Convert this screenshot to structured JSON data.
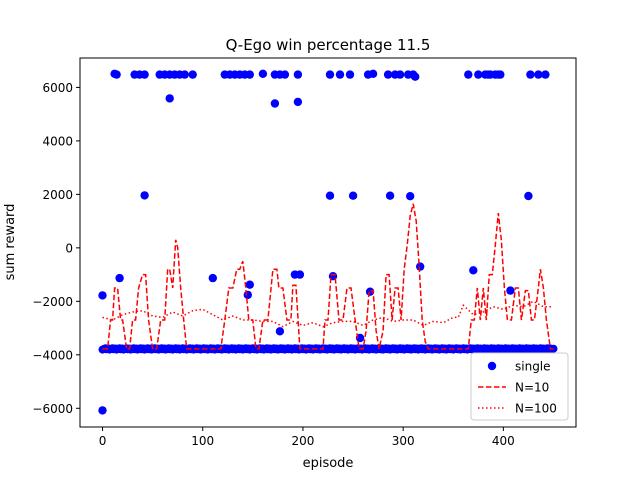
{
  "chart_data": {
    "type": "scatter",
    "title": "Q-Ego win percentage  11.5",
    "xlabel": "episode",
    "ylabel": "sum reward",
    "xlim": [
      -22.5,
      472.5
    ],
    "ylim": [
      -6700,
      7100
    ],
    "xticks": [
      0,
      100,
      200,
      300,
      400
    ],
    "yticks": [
      -6000,
      -4000,
      -2000,
      0,
      2000,
      4000,
      6000
    ],
    "tick_labels_x": [
      "0",
      "100",
      "200",
      "300",
      "400"
    ],
    "tick_labels_y": [
      "−6000",
      "−4000",
      "−2000",
      "0",
      "2000",
      "4000",
      "6000"
    ],
    "grid": false,
    "legend": {
      "placement": "lower-right",
      "entries": [
        "single",
        "N=10",
        "N=100"
      ]
    },
    "colors": {
      "single": "#0000ff",
      "n10": "#ff0000",
      "n100": "#ff0000"
    },
    "series": [
      {
        "name": "single",
        "style": "markers",
        "baseline_value": -3780,
        "baseline_x_range": [
          0,
          450
        ],
        "x": [
          0,
          0,
          12,
          14,
          17,
          32,
          37,
          42,
          42,
          57,
          62,
          67,
          67,
          72,
          77,
          82,
          90,
          110,
          122,
          127,
          132,
          137,
          142,
          145,
          147,
          147,
          160,
          172,
          172,
          177,
          177,
          182,
          192,
          195,
          195,
          197,
          227,
          227,
          230,
          237,
          247,
          250,
          257,
          265,
          267,
          270,
          285,
          287,
          292,
          297,
          305,
          307,
          310,
          312,
          317,
          365,
          370,
          375,
          382,
          385,
          387,
          392,
          395,
          397,
          407,
          425,
          427,
          435,
          442
        ],
        "y": [
          -6080,
          -1780,
          6510,
          6480,
          -1130,
          6480,
          6480,
          1960,
          6480,
          6480,
          6480,
          6480,
          5590,
          6480,
          6480,
          6480,
          6480,
          -1130,
          6480,
          6480,
          6480,
          6480,
          6480,
          -1760,
          -1380,
          6480,
          6510,
          6480,
          5400,
          6480,
          -3120,
          6480,
          -1000,
          5460,
          6480,
          -1000,
          6480,
          1950,
          -1060,
          6480,
          6480,
          1950,
          -3370,
          6480,
          -1640,
          6510,
          6480,
          1950,
          6480,
          6480,
          6480,
          1930,
          6480,
          6400,
          -700,
          6480,
          -840,
          6480,
          6480,
          6480,
          6480,
          6480,
          6480,
          6480,
          -1600,
          1940,
          6480,
          6480,
          6480
        ]
      },
      {
        "name": "N=10",
        "style": "dashed",
        "x": [
          0,
          5,
          8,
          10,
          12,
          15,
          18,
          20,
          24,
          27,
          30,
          33,
          36,
          40,
          43,
          46,
          50,
          54,
          58,
          62,
          65,
          67,
          70,
          73,
          75,
          78,
          81,
          84,
          87,
          90,
          100,
          110,
          118,
          122,
          126,
          130,
          134,
          137,
          140,
          143,
          146,
          150,
          153,
          156,
          160,
          165,
          170,
          174,
          176,
          180,
          184,
          188,
          190,
          193,
          197,
          200,
          210,
          215,
          220,
          222,
          225,
          228,
          232,
          236,
          240,
          244,
          248,
          252,
          256,
          260,
          263,
          266,
          270,
          273,
          276,
          280,
          283,
          286,
          289,
          292,
          295,
          298,
          301,
          304,
          307,
          310,
          313,
          316,
          319,
          322,
          325,
          330,
          340,
          350,
          360,
          365,
          368,
          371,
          374,
          377,
          380,
          383,
          386,
          389,
          392,
          395,
          398,
          401,
          404,
          408,
          412,
          415,
          418,
          422,
          425,
          428,
          431,
          434,
          437,
          440,
          443,
          447,
          450
        ],
        "y": [
          -3780,
          -3780,
          -2700,
          -2700,
          -1500,
          -1500,
          -2700,
          -2700,
          -3780,
          -3780,
          -2700,
          -2700,
          -1500,
          -1000,
          -1000,
          -2700,
          -3780,
          -3780,
          -2700,
          -2700,
          -800,
          -800,
          -1500,
          300,
          0,
          -1500,
          -2700,
          -3780,
          -3780,
          -3780,
          -3780,
          -3780,
          -3780,
          -2700,
          -1500,
          -1500,
          -800,
          -800,
          -500,
          -1500,
          -2700,
          -2700,
          -3780,
          -3780,
          -2700,
          -2700,
          -800,
          -800,
          -1500,
          -1500,
          -2700,
          -2700,
          -1400,
          -1400,
          -3780,
          -3780,
          -3780,
          -3780,
          -3780,
          -2700,
          -2700,
          -1000,
          -1000,
          -2700,
          -2700,
          -1500,
          -1500,
          -2700,
          -3780,
          -3780,
          -3100,
          -1600,
          -1600,
          -3100,
          -3780,
          -3100,
          -1000,
          -1000,
          -2700,
          -1500,
          -1500,
          -2700,
          -800,
          100,
          1200,
          1650,
          1000,
          -700,
          -2700,
          -3500,
          -3780,
          -3780,
          -3780,
          -3780,
          -3780,
          -3780,
          -2700,
          -2700,
          -1500,
          -2700,
          -1500,
          -2700,
          -1000,
          -1000,
          100,
          1300,
          300,
          -1500,
          -2700,
          -2700,
          -1500,
          -1500,
          -2700,
          -1600,
          -1600,
          -2700,
          -2700,
          -1800,
          -800,
          -1500,
          -2700,
          -3780,
          -3780
        ]
      },
      {
        "name": "N=100",
        "style": "dotted",
        "x": [
          0,
          10,
          20,
          30,
          40,
          50,
          60,
          70,
          80,
          90,
          100,
          110,
          120,
          130,
          140,
          150,
          160,
          170,
          180,
          190,
          200,
          210,
          220,
          230,
          240,
          250,
          260,
          270,
          280,
          290,
          300,
          310,
          320,
          330,
          340,
          350,
          355,
          360,
          370,
          380,
          390,
          400,
          410,
          420,
          430,
          440,
          450
        ],
        "y": [
          -2600,
          -2700,
          -2500,
          -2400,
          -2350,
          -2550,
          -2600,
          -2400,
          -2550,
          -2350,
          -2300,
          -2500,
          -2700,
          -2550,
          -2700,
          -2700,
          -2750,
          -2750,
          -2950,
          -2750,
          -2900,
          -2800,
          -2950,
          -2800,
          -2750,
          -2750,
          -2900,
          -2700,
          -2600,
          -2750,
          -2700,
          -2700,
          -2900,
          -2750,
          -2800,
          -2600,
          -2600,
          -2150,
          -2500,
          -2400,
          -2200,
          -2300,
          -2150,
          -2200,
          -2000,
          -2200,
          -2200
        ]
      }
    ]
  }
}
